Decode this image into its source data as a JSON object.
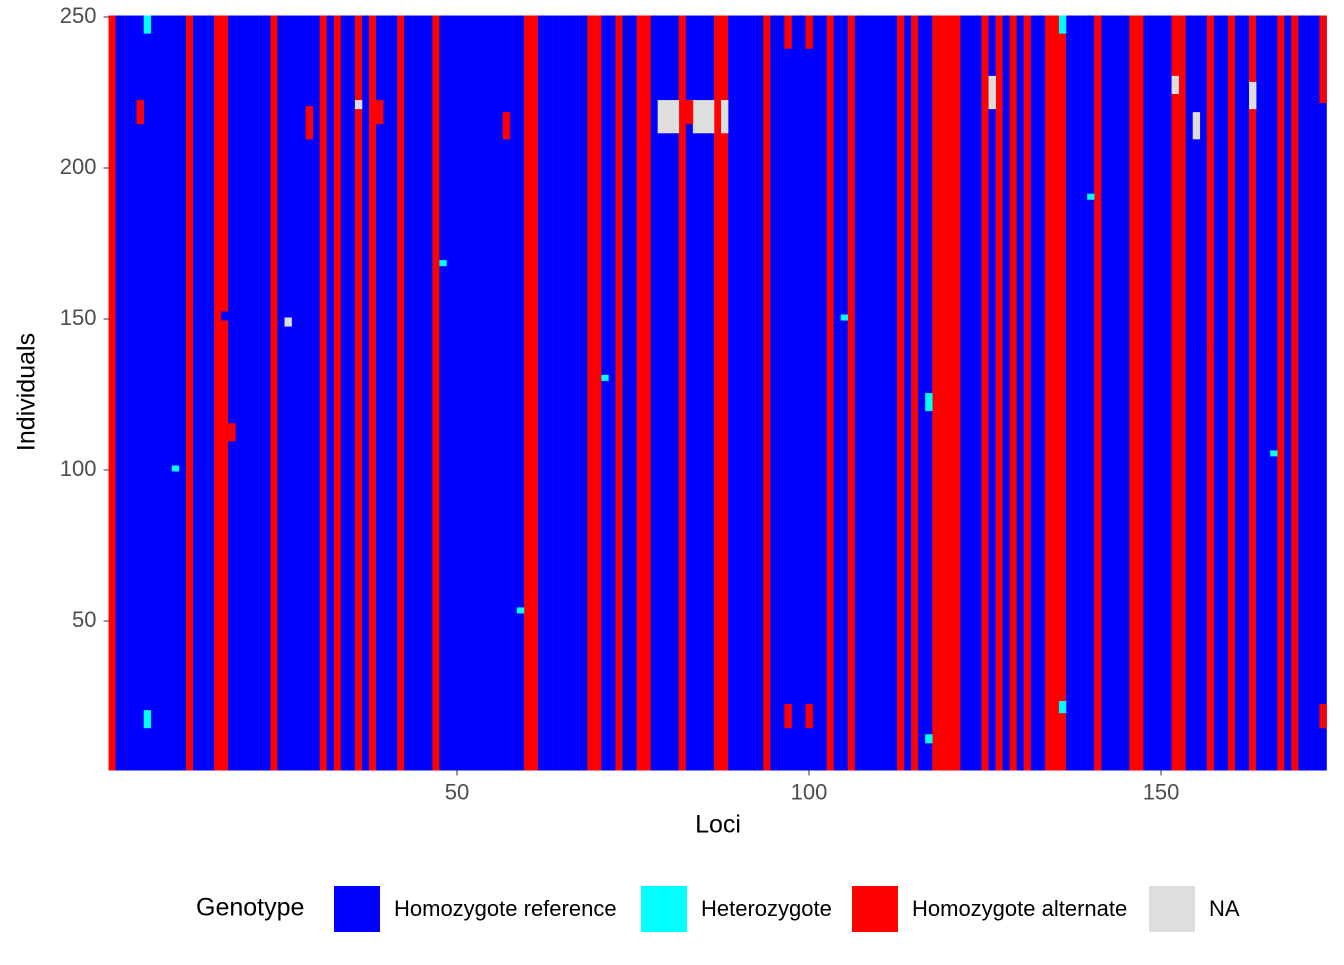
{
  "chart_data": {
    "type": "heatmap",
    "x_label": "Loci",
    "y_label": "Individuals",
    "legend_title": "Genotype",
    "series": [
      {
        "name": "Homozygote reference",
        "color": "#0000ff"
      },
      {
        "name": "Heterozygote",
        "color": "#00ffff"
      },
      {
        "name": "Homozygote alternate",
        "color": "#ff0000"
      },
      {
        "name": "NA",
        "color": "#dedede"
      }
    ],
    "xlim": [
      0.5,
      173.5
    ],
    "ylim": [
      0.5,
      250.5
    ],
    "xticks": [
      50,
      100,
      150
    ],
    "yticks": [
      50,
      100,
      150,
      200,
      250
    ],
    "columns": [
      2,
      0,
      0,
      0,
      0,
      0,
      0,
      0,
      0,
      0,
      0,
      2,
      0,
      0,
      0,
      2,
      2,
      0,
      0,
      0,
      0,
      0,
      0,
      2,
      0,
      0,
      0,
      0,
      0,
      0,
      2,
      0,
      2,
      0,
      0,
      2,
      0,
      2,
      0,
      0,
      0,
      2,
      0,
      0,
      0,
      0,
      2,
      0,
      0,
      0,
      0,
      0,
      0,
      0,
      0,
      0,
      0,
      0,
      0,
      2,
      2,
      0,
      0,
      0,
      0,
      0,
      0,
      0,
      2,
      2,
      0,
      0,
      2,
      0,
      0,
      2,
      2,
      0,
      0,
      0,
      0,
      2,
      0,
      0,
      0,
      0,
      2,
      2,
      0,
      0,
      0,
      0,
      0,
      2,
      0,
      0,
      0,
      0,
      0,
      0,
      0,
      0,
      2,
      0,
      0,
      2,
      0,
      0,
      0,
      0,
      0,
      0,
      2,
      0,
      2,
      0,
      0,
      2,
      2,
      2,
      2,
      0,
      0,
      0,
      2,
      0,
      2,
      0,
      2,
      0,
      2,
      0,
      0,
      2,
      2,
      2,
      0,
      0,
      0,
      0,
      2,
      0,
      0,
      0,
      0,
      2,
      2,
      0,
      0,
      0,
      0,
      2,
      2,
      0,
      0,
      0,
      2,
      0,
      0,
      2,
      0,
      0,
      2,
      0,
      0,
      0,
      2,
      0,
      2,
      0,
      0,
      0,
      0
    ],
    "runs": [
      [
        79,
        212,
        222,
        3
      ],
      [
        80,
        212,
        222,
        3
      ],
      [
        81,
        212,
        222,
        3
      ],
      [
        84,
        212,
        222,
        3
      ],
      [
        85,
        212,
        222,
        3
      ],
      [
        86,
        212,
        222,
        3
      ],
      [
        97,
        240,
        250,
        2
      ],
      [
        100,
        240,
        250,
        2
      ],
      [
        97,
        15,
        22,
        2
      ],
      [
        100,
        15,
        22,
        2
      ],
      [
        173,
        15,
        22,
        2
      ],
      [
        173,
        222,
        250,
        2
      ],
      [
        6,
        15,
        20,
        1
      ],
      [
        6,
        245,
        250,
        1
      ],
      [
        117,
        120,
        125,
        1
      ],
      [
        117,
        10,
        12,
        1
      ],
      [
        136,
        20,
        23,
        1
      ],
      [
        136,
        245,
        250,
        1
      ],
      [
        126,
        220,
        230,
        3
      ],
      [
        152,
        225,
        230,
        3
      ],
      [
        155,
        210,
        218,
        3
      ],
      [
        163,
        220,
        228,
        3
      ],
      [
        26,
        148,
        150,
        3
      ],
      [
        36,
        220,
        222,
        3
      ],
      [
        5,
        215,
        222,
        2
      ],
      [
        29,
        210,
        220,
        2
      ],
      [
        39,
        215,
        222,
        2
      ],
      [
        57,
        210,
        218,
        2
      ],
      [
        83,
        215,
        222,
        2
      ],
      [
        88,
        212,
        222,
        3
      ],
      [
        2,
        3,
        4,
        0
      ],
      [
        10,
        100,
        101,
        1
      ],
      [
        18,
        110,
        115,
        2
      ],
      [
        17,
        150,
        152,
        0
      ],
      [
        48,
        168,
        169,
        1
      ],
      [
        71,
        130,
        131,
        1
      ],
      [
        105,
        150,
        151,
        1
      ],
      [
        110,
        80,
        81,
        0
      ],
      [
        140,
        190,
        191,
        1
      ],
      [
        158,
        140,
        141,
        0
      ],
      [
        166,
        105,
        106,
        1
      ],
      [
        59,
        53,
        54,
        1
      ]
    ]
  }
}
